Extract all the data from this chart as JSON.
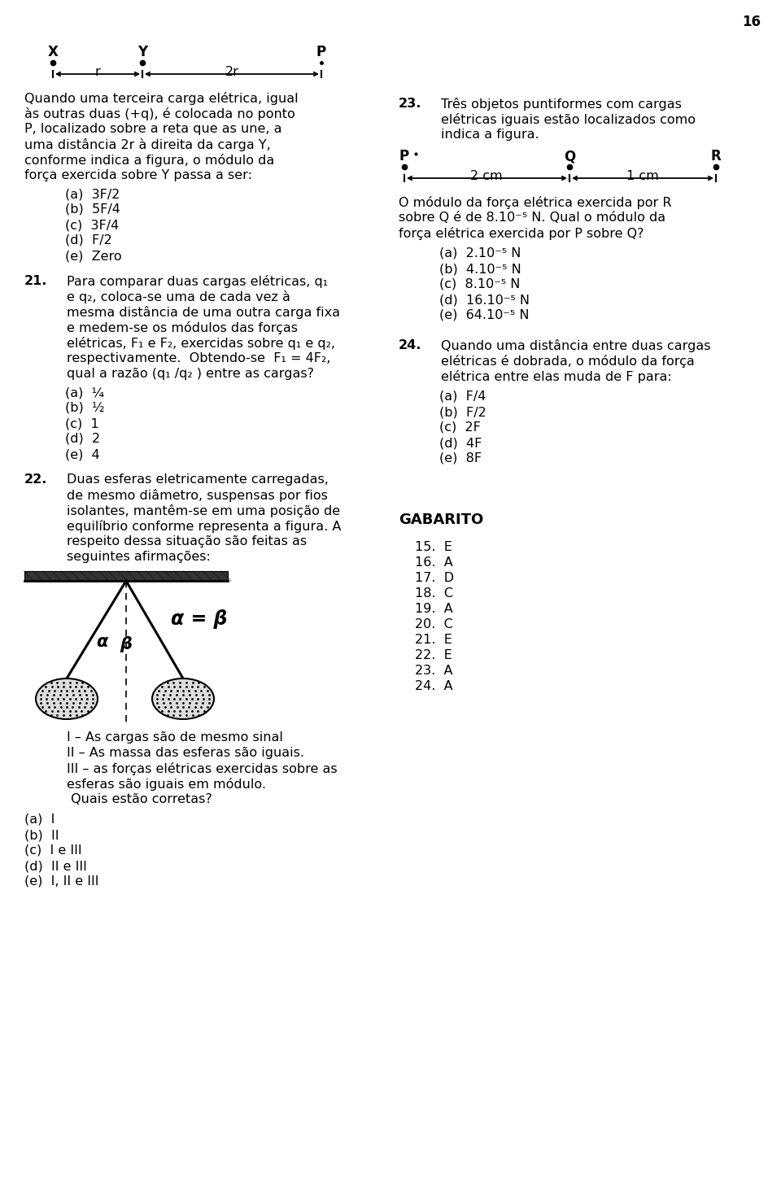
{
  "page_number": "16",
  "bg_color": "#ffffff",
  "q20_text_lines": [
    "Quando uma terceira carga elétrica, igual",
    "às outras duas (+q), é colocada no ponto",
    "P, localizado sobre a reta que as une, a",
    "uma distância 2r à direita da carga Y,",
    "conforme indica a figura, o módulo da",
    "força exercida sobre Y passa a ser:"
  ],
  "q20_options": [
    "(a)  3F/2",
    "(b)  5F/4",
    "(c)  3F/4",
    "(d)  F/2",
    "(e)  Zero"
  ],
  "q21_text_lines": [
    "Para comparar duas cargas elétricas, q₁",
    "e q₂, coloca-se uma de cada vez à",
    "mesma distância de uma outra carga fixa",
    "e medem-se os módulos das forças",
    "elétricas, F₁ e F₂, exercidas sobre q₁ e q₂,",
    "respectivamente.  Obtendo-se  F₁ = 4F₂,",
    "qual a razão (q₁ /q₂ ) entre as cargas?"
  ],
  "q21_options": [
    "(a)  ¼",
    "(b)  ½",
    "(c)  1",
    "(d)  2",
    "(e)  4"
  ],
  "q22_text_lines": [
    "Duas esferas eletricamente carregadas,",
    "de mesmo diâmetro, suspensas por fios",
    "isolantes, mantêm-se em uma posição de",
    "equilíbrio conforme representa a figura. A",
    "respeito dessa situação são feitas as",
    "seguintes afirmações:"
  ],
  "q22_statements": [
    "I – As cargas são de mesmo sinal",
    "II – As massa das esferas são iguais.",
    "III – as forças elétricas exercidas sobre as",
    "esferas são iguais em módulo.",
    " Quais estão corretas?"
  ],
  "q22_options": [
    "(a)  I",
    "(b)  II",
    "(c)  I e III",
    "(d)  II e III",
    "(e)  I, II e III"
  ],
  "q23_text_lines": [
    "Três objetos puntiformes com cargas",
    "elétricas iguais estão localizados como",
    "indica a figura."
  ],
  "q23_body": [
    "O módulo da força elétrica exercida por R",
    "sobre Q é de 8.10⁻⁵ N. Qual o módulo da",
    "força elétrica exercida por P sobre Q?"
  ],
  "q23_options": [
    "(a)  2.10⁻⁵ N",
    "(b)  4.10⁻⁵ N",
    "(c)  8.10⁻⁵ N",
    "(d)  16.10⁻⁵ N",
    "(e)  64.10⁻⁵ N"
  ],
  "q24_text_lines": [
    "Quando uma distância entre duas cargas",
    "elétricas é dobrada, o módulo da força",
    "elétrica entre elas muda de F para:"
  ],
  "q24_options": [
    "(a)  F/4",
    "(b)  F/2",
    "(c)  2F",
    "(d)  4F",
    "(e)  8F"
  ],
  "gabarito_items": [
    "15.  E",
    "16.  A",
    "17.  D",
    "18.  C",
    "19.  A",
    "20.  C",
    "21.  E",
    "22.  E",
    "23.  A",
    "24.  A"
  ]
}
